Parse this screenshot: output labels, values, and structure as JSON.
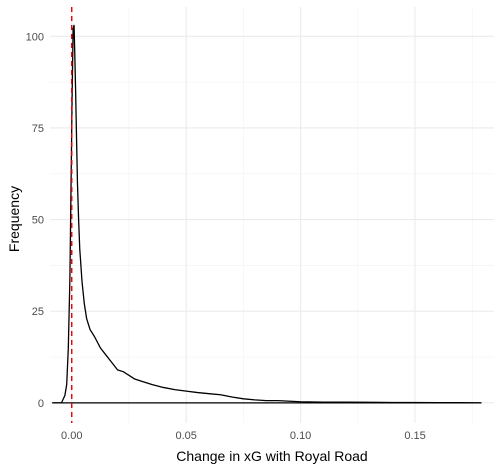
{
  "chart_data": {
    "type": "line",
    "title": "",
    "xlabel": "Change in xG with Royal Road",
    "ylabel": "Frequency",
    "xlim": [
      -0.0095,
      0.1845
    ],
    "ylim": [
      -5.5,
      108
    ],
    "x_ticks": [
      0.0,
      0.05,
      0.1,
      0.15
    ],
    "x_tick_labels": [
      "0.00",
      "0.05",
      "0.10",
      "0.15"
    ],
    "y_ticks": [
      0,
      25,
      50,
      75,
      100
    ],
    "y_tick_labels": [
      "0",
      "25",
      "50",
      "75",
      "100"
    ],
    "grid": true,
    "reference_line": {
      "x": 0.0,
      "style": "dashed",
      "color": "#dd0000"
    },
    "series": [
      {
        "line_color": "#000000",
        "x": [
          -0.0085,
          -0.0045,
          -0.003,
          -0.0022,
          -0.0015,
          -0.0008,
          -0.0003,
          0.0002,
          0.0006,
          0.001,
          0.0013,
          0.0017,
          0.0021,
          0.0025,
          0.003,
          0.0035,
          0.0045,
          0.0055,
          0.0065,
          0.008,
          0.01,
          0.0125,
          0.015,
          0.0175,
          0.02,
          0.0225,
          0.025,
          0.0275,
          0.03,
          0.035,
          0.04,
          0.045,
          0.05,
          0.055,
          0.06,
          0.065,
          0.07,
          0.075,
          0.08,
          0.085,
          0.09,
          0.1,
          0.11,
          0.12,
          0.13,
          0.14,
          0.15,
          0.16,
          0.17,
          0.179
        ],
        "y": [
          0,
          0,
          2,
          5,
          15,
          34,
          60,
          85,
          102,
          103,
          96,
          85,
          72,
          60,
          50,
          42,
          33,
          27,
          23,
          20,
          18,
          15,
          13,
          11,
          9,
          8.5,
          7.5,
          6.5,
          6,
          5,
          4.2,
          3.6,
          3.2,
          2.8,
          2.5,
          2.2,
          1.6,
          1.1,
          0.8,
          0.6,
          0.6,
          0.3,
          0.2,
          0.2,
          0.15,
          0.1,
          0.1,
          0.05,
          0.05,
          0
        ]
      }
    ]
  }
}
